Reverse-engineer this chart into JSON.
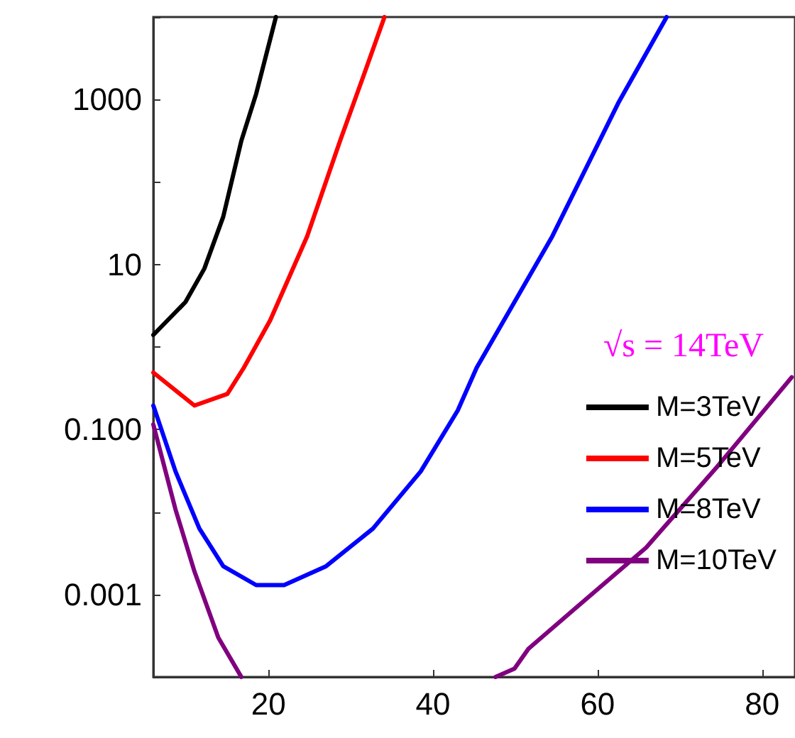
{
  "chart_data": {
    "type": "line",
    "log": "y",
    "xlim": [
      6,
      84
    ],
    "xticks": [
      20,
      40,
      60,
      80
    ],
    "ylim": [
      0.0001,
      10000
    ],
    "yticks": [
      {
        "value": 0.0001,
        "label": null
      },
      {
        "value": 0.001,
        "label": "0.001"
      },
      {
        "value": 0.01,
        "label": null
      },
      {
        "value": 0.1,
        "label": "0.100"
      },
      {
        "value": 1,
        "label": null
      },
      10,
      {
        "value": 100,
        "label": null
      },
      1000,
      {
        "value": 10000,
        "label": null
      }
    ],
    "grid": false,
    "legend": "right",
    "marker": "none",
    "line_style": "solid",
    "annotations": [
      "√s = 14TeV"
    ],
    "series": [
      {
        "name": "M=3TeV",
        "color": "#000000",
        "x": [
          6,
          9.9,
          12.2,
          14.5,
          16.7,
          18.5,
          20.9
        ],
        "values": [
          1.4,
          3.5,
          8.9,
          38,
          316,
          1170,
          10000
        ]
      },
      {
        "name": "M=5TeV",
        "color": "#ff0000",
        "x": [
          6,
          11,
          15,
          17,
          20.2,
          24.7,
          28.7,
          31.6,
          34.1
        ],
        "values": [
          0.49,
          0.195,
          0.27,
          0.56,
          2.1,
          22,
          316,
          2000,
          10000
        ]
      },
      {
        "name": "M=8TeV",
        "color": "#0000ff",
        "x": [
          6,
          8.7,
          11.6,
          14.5,
          18.5,
          21.9,
          27,
          32.7,
          38.5,
          43,
          45.3,
          54.5,
          62.5,
          68.4
        ],
        "values": [
          0.195,
          0.031,
          0.0063,
          0.0022,
          0.0013,
          0.0013,
          0.0022,
          0.0063,
          0.031,
          0.17,
          0.56,
          22,
          900,
          10000
        ]
      },
      {
        "name": "M=10TeV",
        "color": "#800080",
        "x": [
          6,
          8.7,
          11,
          13.9,
          16.7,
          32,
          47.6,
          49.9,
          51.6,
          57.3,
          65.9,
          74.5,
          83.6
        ],
        "values": [
          0.115,
          0.0107,
          0.0019,
          0.0003,
          0.0001,
          null,
          0.0001,
          0.000126,
          0.00022,
          0.00068,
          0.0037,
          0.035,
          0.43
        ]
      }
    ]
  }
}
